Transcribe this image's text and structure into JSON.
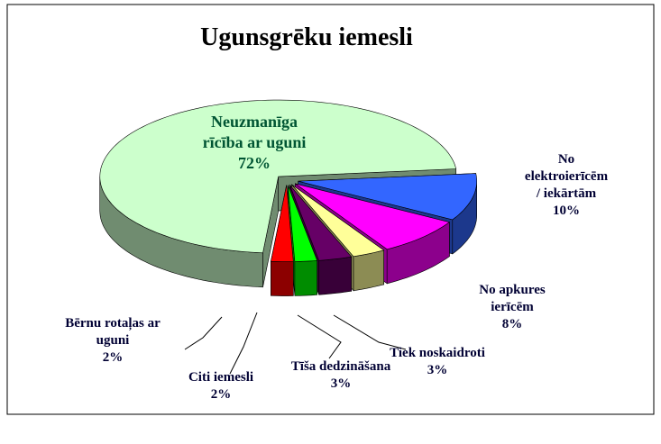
{
  "chart_data": {
    "type": "pie",
    "title": "Ugunsgrēku iemesli",
    "categories": [
      "Neuzmanīga\nrīcība ar uguni",
      "No elektroierīcēm\n/ iekārtām",
      "No apkures\nierīcēm",
      "Tiek noskaidroti",
      "Tīša dedzināšana",
      "Citi iemesli",
      "Bērnu rotaļas ar\nuguni"
    ],
    "values": [
      72,
      10,
      8,
      3,
      3,
      2,
      2
    ],
    "value_labels": [
      "72%",
      "10%",
      "8%",
      "3%",
      "3%",
      "2%",
      "2%"
    ],
    "colors": [
      "#ccffcc",
      "#3366ff",
      "#ff00ff",
      "#ffff99",
      "#660066",
      "#00ff00",
      "#ff0000"
    ]
  }
}
